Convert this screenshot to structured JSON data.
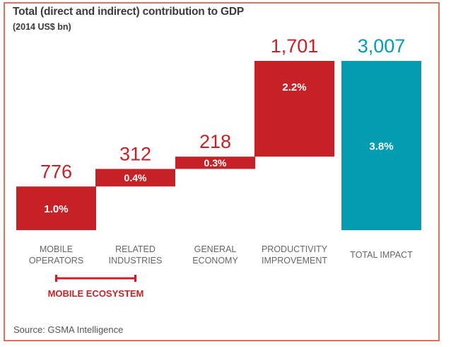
{
  "chart_data": {
    "type": "bar",
    "subtype": "waterfall",
    "title": "Total (direct and indirect) contribution to GDP",
    "subtitle": "(2014 US$ bn)",
    "xlabel": "",
    "ylabel": "",
    "ylim": [
      0,
      3007
    ],
    "grid": false,
    "legend": null,
    "categories": [
      [
        "MOBILE",
        "OPERATORS"
      ],
      [
        "RELATED",
        "INDUSTRIES"
      ],
      [
        "GENERAL",
        "ECONOMY"
      ],
      [
        "PRODUCTIVITY",
        "IMPROVEMENT"
      ],
      [
        "TOTAL IMPACT"
      ]
    ],
    "series": [
      {
        "name": "Contribution to GDP (US$ bn)",
        "values": [
          776,
          312,
          218,
          1701,
          3007
        ],
        "value_labels": [
          "776",
          "312",
          "218",
          "1,701",
          "3,007"
        ],
        "share_of_gdp_labels": [
          "1.0%",
          "0.4%",
          "0.3%",
          "2.2%",
          "3.8%"
        ],
        "is_total": [
          false,
          false,
          false,
          false,
          true
        ]
      }
    ],
    "colors": {
      "increment": "#c62127",
      "total": "#039cb0",
      "category_label": "#666666",
      "bar_inner_label": "#ffffff"
    },
    "annotations": [
      {
        "type": "bracket",
        "label": "MOBILE ECOSYSTEM",
        "spans_categories": [
          0,
          1
        ],
        "color": "#c62127"
      }
    ]
  },
  "footer": {
    "source": "Source: GSMA Intelligence"
  },
  "frame_color": "#d9735f"
}
